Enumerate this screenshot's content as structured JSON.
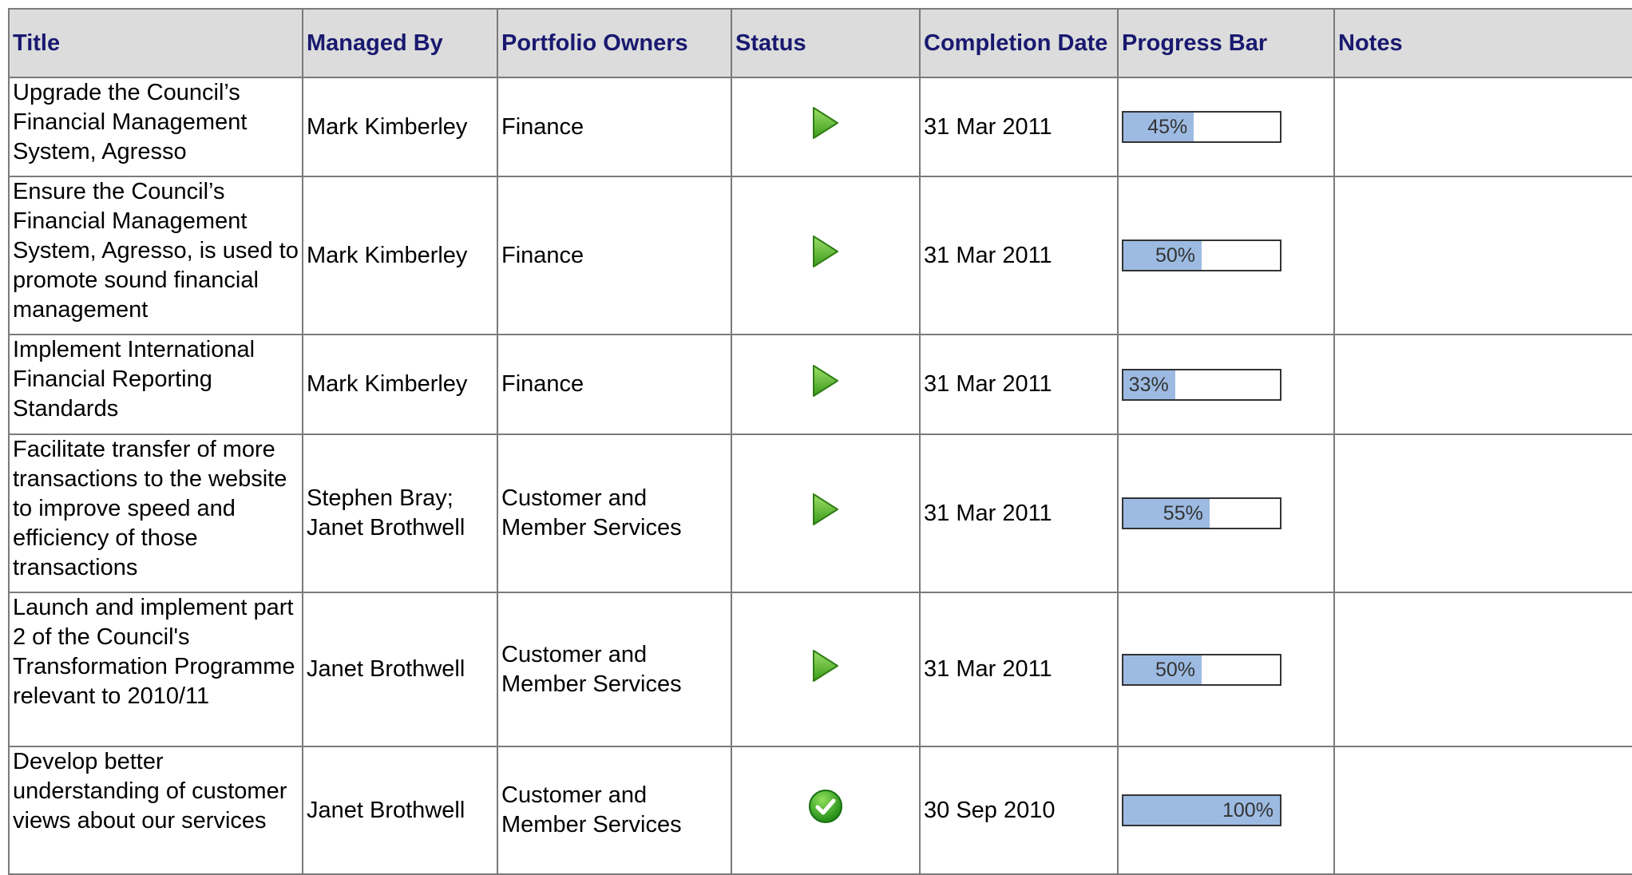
{
  "table": {
    "columns": [
      "Title",
      "Managed By",
      "Portfolio Owners",
      "Status",
      "Completion Date",
      "Progress Bar",
      "Notes"
    ],
    "rows": [
      {
        "title": "Upgrade the Council’s Financial Management System, Agresso",
        "managed_by": "Mark Kimberley",
        "portfolio_owners": "Finance",
        "completion_date": "31 Mar 2011",
        "progress": {
          "value": 45,
          "label": "45%"
        }
      },
      {
        "title": "Ensure the Council’s Financial Management System, Agresso, is used to promote sound financial management",
        "managed_by": "Mark Kimberley",
        "portfolio_owners": "Finance",
        "completion_date": "31 Mar 2011",
        "progress": {
          "value": 50,
          "label": "50%"
        }
      },
      {
        "title": "Implement International Financial Reporting Standards",
        "managed_by": "Mark Kimberley",
        "portfolio_owners": "Finance",
        "completion_date": "31 Mar 2011",
        "progress": {
          "value": 33,
          "label": "33%"
        }
      },
      {
        "title": "Facilitate transfer of more transactions to the website to improve speed and efficiency of those transactions",
        "managed_by": "Stephen Bray; Janet Brothwell",
        "portfolio_owners": "Customer and Member Services",
        "completion_date": "31 Mar 2011",
        "progress": {
          "value": 55,
          "label": "55%"
        }
      },
      {
        "title": "Launch and implement part 2 of the Council's Transformation Programme relevant to 2010/11",
        "managed_by": "Janet Brothwell",
        "portfolio_owners": "Customer and Member Services",
        "completion_date": "31 Mar 2011",
        "progress": {
          "value": 50,
          "label": "50%"
        }
      },
      {
        "title": "Develop better understanding of customer views about our services",
        "managed_by": "Janet Brothwell",
        "portfolio_owners": "Customer and Member Services",
        "completion_date": "30 Sep 2010",
        "progress": {
          "value": 100,
          "label": "100%"
        }
      }
    ]
  }
}
